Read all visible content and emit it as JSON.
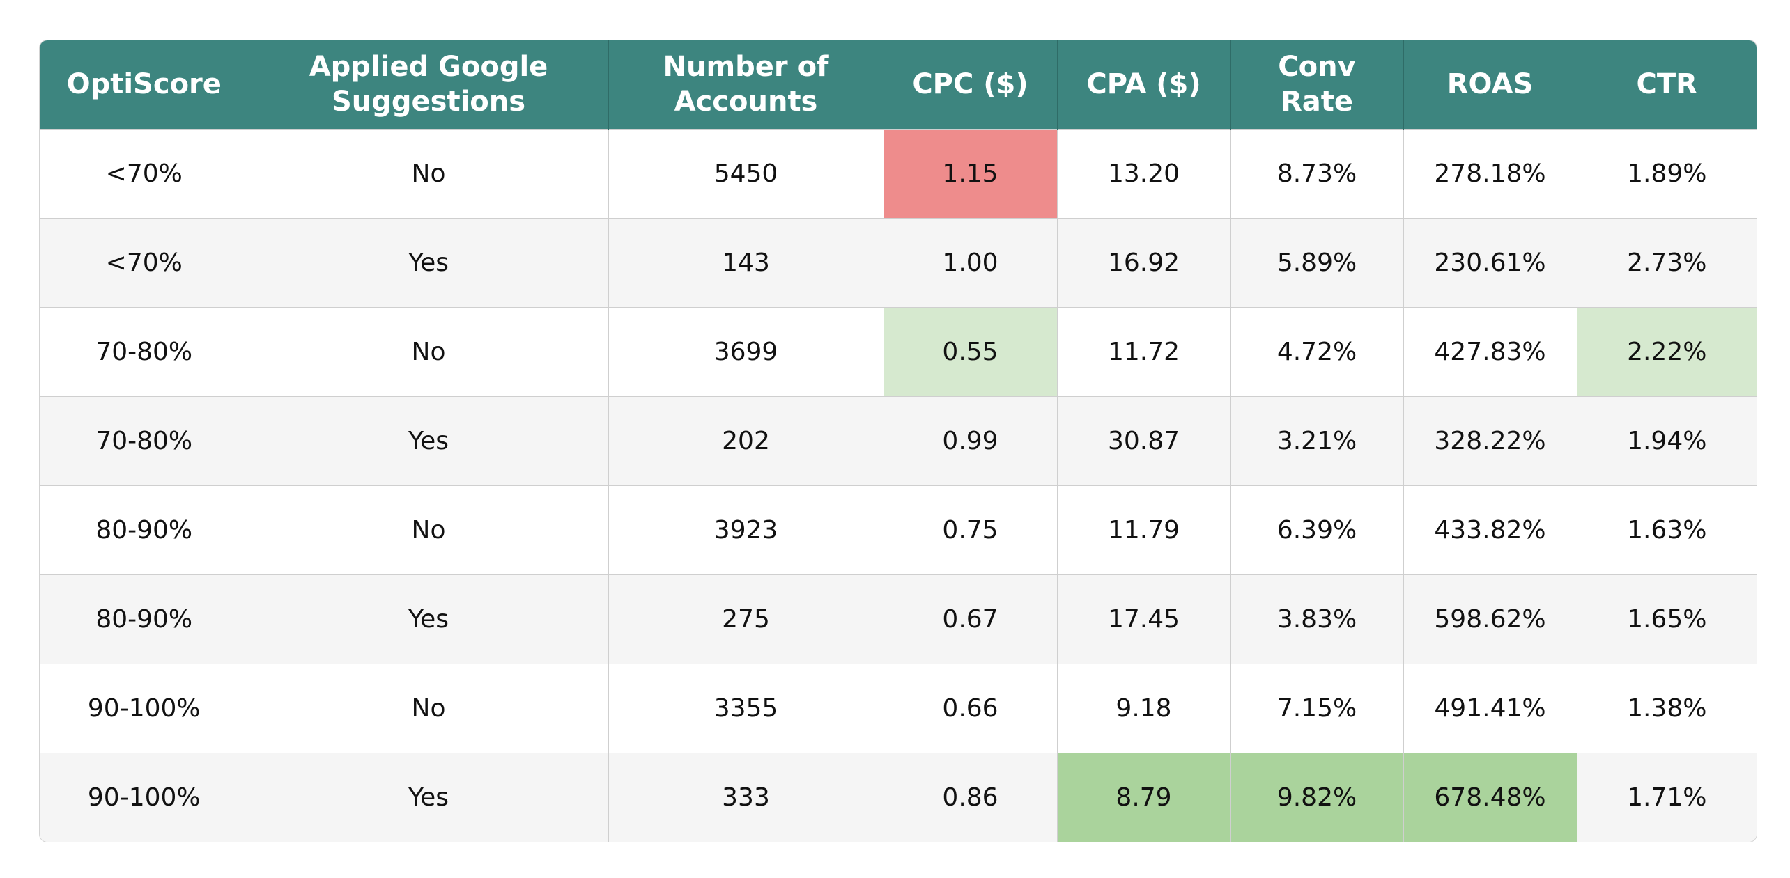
{
  "chart_data": {
    "type": "table",
    "columns": [
      "OptiScore",
      "Applied Google Suggestions",
      "Number of Accounts",
      "CPC ($)",
      "CPA ($)",
      "Conv Rate",
      "ROAS",
      "CTR"
    ],
    "rows": [
      [
        "<70%",
        "No",
        "5450",
        "1.15",
        "13.20",
        "8.73%",
        "278.18%",
        "1.89%"
      ],
      [
        "<70%",
        "Yes",
        "143",
        "1.00",
        "16.92",
        "5.89%",
        "230.61%",
        "2.73%"
      ],
      [
        "70-80%",
        "No",
        "3699",
        "0.55",
        "11.72",
        "4.72%",
        "427.83%",
        "2.22%"
      ],
      [
        "70-80%",
        "Yes",
        "202",
        "0.99",
        "30.87",
        "3.21%",
        "328.22%",
        "1.94%"
      ],
      [
        "80-90%",
        "No",
        "3923",
        "0.75",
        "11.79",
        "6.39%",
        "433.82%",
        "1.63%"
      ],
      [
        "80-90%",
        "Yes",
        "275",
        "0.67",
        "17.45",
        "3.83%",
        "598.62%",
        "1.65%"
      ],
      [
        "90-100%",
        "No",
        "3355",
        "0.66",
        "9.18",
        "7.15%",
        "491.41%",
        "1.38%"
      ],
      [
        "90-100%",
        "Yes",
        "333",
        "0.86",
        "8.79",
        "9.82%",
        "678.48%",
        "1.71%"
      ]
    ],
    "highlights": [
      {
        "row": 0,
        "col": 3,
        "color": "#ee8c8c"
      },
      {
        "row": 2,
        "col": 3,
        "color": "#d6e9cf"
      },
      {
        "row": 2,
        "col": 7,
        "color": "#d6e9cf"
      },
      {
        "row": 7,
        "col": 4,
        "color": "#aad39c"
      },
      {
        "row": 7,
        "col": 5,
        "color": "#aad39c"
      },
      {
        "row": 7,
        "col": 6,
        "color": "#aad39c"
      }
    ],
    "colors": {
      "header_bg": "#3d857f",
      "header_text": "#ffffff",
      "row_alt_bg": "#f5f5f5"
    }
  }
}
